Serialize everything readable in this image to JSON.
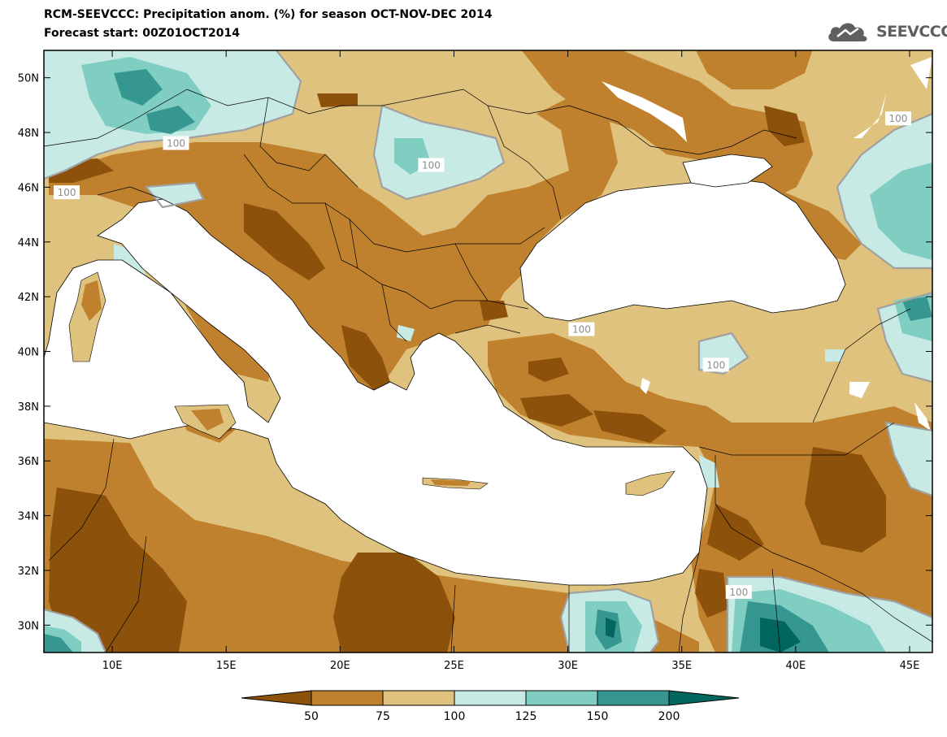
{
  "header": {
    "title": "RCM-SEEVCCC: Precipitation anom. (%) for season OCT-NOV-DEC 2014",
    "subtitle": "Forecast start: 00Z01OCT2014",
    "logo_text": "SEEVCCC",
    "logo_icon": "cloud-icon"
  },
  "map": {
    "lon_range": [
      7,
      46
    ],
    "lat_range": [
      29,
      51
    ],
    "lon_ticks": [
      {
        "value": 10,
        "label": "10E"
      },
      {
        "value": 15,
        "label": "15E"
      },
      {
        "value": 20,
        "label": "20E"
      },
      {
        "value": 25,
        "label": "25E"
      },
      {
        "value": 30,
        "label": "30E"
      },
      {
        "value": 35,
        "label": "35E"
      },
      {
        "value": 40,
        "label": "40E"
      },
      {
        "value": 45,
        "label": "45E"
      }
    ],
    "lat_ticks": [
      {
        "value": 30,
        "label": "30N"
      },
      {
        "value": 32,
        "label": "32N"
      },
      {
        "value": 34,
        "label": "34N"
      },
      {
        "value": 36,
        "label": "36N"
      },
      {
        "value": 38,
        "label": "38N"
      },
      {
        "value": 40,
        "label": "40N"
      },
      {
        "value": 42,
        "label": "42N"
      },
      {
        "value": 44,
        "label": "44N"
      },
      {
        "value": 46,
        "label": "46N"
      },
      {
        "value": 48,
        "label": "48N"
      },
      {
        "value": 50,
        "label": "50N"
      }
    ],
    "contour_labels": [
      {
        "text": "100",
        "lon": 12.8,
        "lat": 47.6
      },
      {
        "text": "100",
        "lon": 8.0,
        "lat": 45.8
      },
      {
        "text": "100",
        "lon": 24.0,
        "lat": 46.8
      },
      {
        "text": "100",
        "lon": 44.5,
        "lat": 48.5
      },
      {
        "text": "100",
        "lon": 30.6,
        "lat": 40.8
      },
      {
        "text": "100",
        "lon": 36.5,
        "lat": 39.5
      },
      {
        "text": "100",
        "lon": 37.5,
        "lat": 31.2
      }
    ]
  },
  "colorbar": {
    "boundaries": [
      "50",
      "75",
      "100",
      "125",
      "150",
      "200"
    ],
    "colors": [
      "#8c510a",
      "#bf812d",
      "#dfc27d",
      "#c7eae5",
      "#80cdc1",
      "#35978f",
      "#01665e"
    ]
  }
}
